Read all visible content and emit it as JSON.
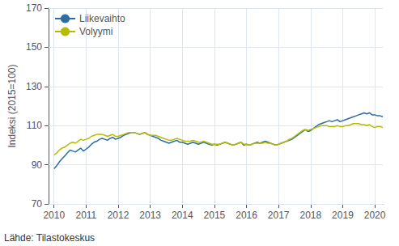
{
  "chart_data": {
    "type": "line",
    "ylabel": "Indeksi (2015=100)",
    "annotations": [
      "Lähde: Tilastokeskus"
    ],
    "xlim": [
      2009.83,
      2020.25
    ],
    "xticks": [
      2010,
      2011,
      2012,
      2013,
      2014,
      2015,
      2016,
      2017,
      2018,
      2019,
      2020
    ],
    "ylim": [
      70,
      170
    ],
    "yticks": [
      70,
      90,
      110,
      130,
      150,
      170
    ],
    "grid": true,
    "legend": "upper left",
    "x": [
      2010,
      2010.0833333333333,
      2010.1666666666667,
      2010.25,
      2010.3333333333333,
      2010.4166666666667,
      2010.5,
      2010.5833333333333,
      2010.6666666666667,
      2010.75,
      2010.8333333333333,
      2010.9166666666667,
      2011,
      2011.0833333333333,
      2011.1666666666667,
      2011.25,
      2011.3333333333333,
      2011.4166666666667,
      2011.5,
      2011.5833333333333,
      2011.6666666666667,
      2011.75,
      2011.8333333333333,
      2011.9166666666667,
      2012,
      2012.0833333333333,
      2012.1666666666667,
      2012.25,
      2012.3333333333333,
      2012.4166666666667,
      2012.5,
      2012.5833333333333,
      2012.6666666666667,
      2012.75,
      2012.8333333333333,
      2012.9166666666667,
      2013,
      2013.0833333333333,
      2013.1666666666667,
      2013.25,
      2013.3333333333333,
      2013.4166666666667,
      2013.5,
      2013.5833333333333,
      2013.6666666666667,
      2013.75,
      2013.8333333333333,
      2013.9166666666667,
      2014,
      2014.0833333333333,
      2014.1666666666667,
      2014.25,
      2014.3333333333333,
      2014.4166666666667,
      2014.5,
      2014.5833333333333,
      2014.6666666666667,
      2014.75,
      2014.8333333333333,
      2014.9166666666667,
      2015,
      2015.0833333333333,
      2015.1666666666667,
      2015.25,
      2015.3333333333333,
      2015.4166666666667,
      2015.5,
      2015.5833333333333,
      2015.6666666666667,
      2015.75,
      2015.8333333333333,
      2015.9166666666667,
      2016,
      2016.0833333333333,
      2016.1666666666667,
      2016.25,
      2016.3333333333333,
      2016.4166666666667,
      2016.5,
      2016.5833333333333,
      2016.6666666666667,
      2016.75,
      2016.8333333333333,
      2016.9166666666667,
      2017,
      2017.0833333333333,
      2017.1666666666667,
      2017.25,
      2017.3333333333333,
      2017.4166666666667,
      2017.5,
      2017.5833333333333,
      2017.6666666666667,
      2017.75,
      2017.8333333333333,
      2017.9166666666667,
      2018,
      2018.0833333333333,
      2018.1666666666667,
      2018.25,
      2018.3333333333333,
      2018.4166666666667,
      2018.5,
      2018.5833333333333,
      2018.6666666666667,
      2018.75,
      2018.8333333333333,
      2018.9166666666667,
      2019,
      2019.0833333333333,
      2019.1666666666667,
      2019.25,
      2019.3333333333333,
      2019.4166666666667,
      2019.5,
      2019.5833333333333,
      2019.6666666666667,
      2019.75,
      2019.8333333333333,
      2019.9166666666667,
      2020,
      2020.0833333333333,
      2020.1666666666667,
      2020.25
    ],
    "series": [
      {
        "name": "Liikevaihto",
        "color": "#2e6da4",
        "values": [
          88.0,
          89.5,
          91.5,
          93.0,
          94.5,
          96.0,
          97.5,
          97.0,
          96.5,
          97.5,
          98.5,
          97.0,
          98.0,
          99.0,
          100.5,
          101.5,
          102.0,
          103.0,
          103.5,
          103.0,
          102.5,
          103.5,
          104.0,
          103.0,
          103.5,
          104.0,
          105.0,
          105.5,
          106.0,
          106.5,
          106.5,
          106.0,
          105.5,
          106.0,
          106.5,
          105.5,
          105.0,
          104.5,
          104.0,
          103.5,
          102.5,
          102.0,
          101.5,
          101.0,
          101.5,
          102.0,
          102.5,
          101.5,
          101.5,
          101.0,
          100.5,
          101.0,
          101.5,
          101.0,
          100.5,
          101.0,
          101.5,
          101.0,
          100.5,
          100.0,
          100.5,
          100.0,
          100.5,
          101.0,
          101.5,
          101.0,
          100.5,
          100.0,
          100.5,
          101.0,
          101.5,
          100.0,
          100.5,
          100.0,
          100.5,
          101.0,
          101.5,
          101.0,
          101.5,
          102.0,
          101.5,
          101.0,
          100.5,
          100.0,
          100.5,
          101.0,
          101.5,
          102.0,
          102.5,
          103.0,
          104.0,
          105.0,
          106.0,
          107.0,
          108.0,
          107.0,
          107.5,
          108.5,
          109.5,
          110.5,
          111.0,
          111.5,
          112.0,
          112.5,
          112.0,
          112.5,
          113.0,
          112.0,
          112.5,
          113.0,
          113.5,
          114.0,
          114.5,
          115.0,
          115.5,
          116.0,
          116.5,
          116.0,
          116.5,
          115.5,
          115.5,
          115.0,
          115.0,
          114.5
        ]
      },
      {
        "name": "Volyymi",
        "color": "#b5bd00",
        "values": [
          95.0,
          96.0,
          97.5,
          98.5,
          99.0,
          100.0,
          101.0,
          101.5,
          101.0,
          102.0,
          103.0,
          102.5,
          103.0,
          103.5,
          104.5,
          105.0,
          105.5,
          105.5,
          105.5,
          105.0,
          104.5,
          105.0,
          105.5,
          104.5,
          104.5,
          105.0,
          105.5,
          106.0,
          106.5,
          106.5,
          106.5,
          106.0,
          105.5,
          106.0,
          106.5,
          105.5,
          105.0,
          105.0,
          105.0,
          104.5,
          104.0,
          103.5,
          103.0,
          102.5,
          102.5,
          103.0,
          103.5,
          103.0,
          102.5,
          102.0,
          102.0,
          102.0,
          102.5,
          102.0,
          101.5,
          101.5,
          102.0,
          101.5,
          101.0,
          100.5,
          100.5,
          100.5,
          100.5,
          101.0,
          101.5,
          101.0,
          100.5,
          100.0,
          100.5,
          101.0,
          101.5,
          100.5,
          100.5,
          100.0,
          100.5,
          101.0,
          101.0,
          101.0,
          101.0,
          101.5,
          101.0,
          101.0,
          100.5,
          100.0,
          100.5,
          101.0,
          101.5,
          102.0,
          103.0,
          103.5,
          104.5,
          105.5,
          106.5,
          107.5,
          108.0,
          107.5,
          108.0,
          108.5,
          109.0,
          109.5,
          110.0,
          110.0,
          110.0,
          109.5,
          109.5,
          109.5,
          110.0,
          109.5,
          109.5,
          110.0,
          110.0,
          110.5,
          111.0,
          111.0,
          111.0,
          110.5,
          110.5,
          110.0,
          110.5,
          109.5,
          109.0,
          109.5,
          109.5,
          109.0
        ]
      }
    ]
  }
}
